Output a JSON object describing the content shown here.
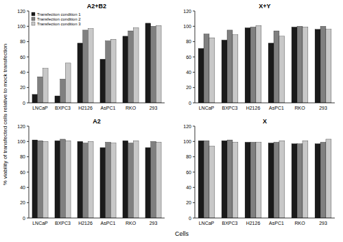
{
  "figure": {
    "y_label": "% viability of transfected cells relative to mock transfection",
    "x_label": "Cells"
  },
  "chart_data": [
    {
      "type": "bar",
      "title": "A2+B2",
      "legend": "upper left",
      "categories": [
        "LNCaP",
        "BXPC3",
        "H2126",
        "AsPC1",
        "RKO",
        "293"
      ],
      "series": [
        {
          "name": "Transfection condition 1",
          "color": "#1a1a1a",
          "values": [
            11,
            9,
            78,
            57,
            87,
            104
          ]
        },
        {
          "name": "Transfection condition 2",
          "color": "#808080",
          "values": [
            34,
            31,
            95,
            81,
            94,
            100
          ]
        },
        {
          "name": "Transfection condition 3",
          "color": "#c8c8c8",
          "values": [
            45,
            52,
            97,
            83,
            98,
            101
          ]
        }
      ],
      "ylim": [
        0,
        120
      ],
      "yticks": [
        0,
        20,
        40,
        60,
        80,
        100,
        120
      ]
    },
    {
      "type": "bar",
      "title": "X+Y",
      "categories": [
        "LNCaP",
        "BXPC3",
        "H2126",
        "AsPC1",
        "RKO",
        "293"
      ],
      "series": [
        {
          "name": "Transfection condition 1",
          "color": "#1a1a1a",
          "values": [
            71,
            82,
            98,
            78,
            99,
            96
          ]
        },
        {
          "name": "Transfection condition 2",
          "color": "#808080",
          "values": [
            90,
            95,
            99,
            94,
            100,
            100
          ]
        },
        {
          "name": "Transfection condition 3",
          "color": "#c8c8c8",
          "values": [
            85,
            89,
            101,
            87,
            99,
            96
          ]
        }
      ],
      "ylim": [
        0,
        120
      ],
      "yticks": [
        0,
        20,
        40,
        60,
        80,
        100,
        120
      ]
    },
    {
      "type": "bar",
      "title": "A2",
      "categories": [
        "LNCaP",
        "BXPC3",
        "H2126",
        "AsPC1",
        "RKO",
        "293"
      ],
      "series": [
        {
          "name": "Transfection condition 1",
          "color": "#1a1a1a",
          "values": [
            102,
            101,
            100,
            92,
            101,
            92
          ]
        },
        {
          "name": "Transfection condition 2",
          "color": "#808080",
          "values": [
            101,
            103,
            98,
            99,
            98,
            100
          ]
        },
        {
          "name": "Transfection condition 3",
          "color": "#c8c8c8",
          "values": [
            100,
            101,
            100,
            98,
            101,
            99
          ]
        }
      ],
      "ylim": [
        0,
        120
      ],
      "yticks": [
        0,
        20,
        40,
        60,
        80,
        100,
        120
      ]
    },
    {
      "type": "bar",
      "title": "X",
      "categories": [
        "LNCaP",
        "BXPC3",
        "H2126",
        "AsPC1",
        "RKO",
        "293"
      ],
      "series": [
        {
          "name": "Transfection condition 1",
          "color": "#1a1a1a",
          "values": [
            101,
            101,
            99,
            98,
            97,
            97
          ]
        },
        {
          "name": "Transfection condition 2",
          "color": "#808080",
          "values": [
            101,
            102,
            99,
            99,
            97,
            99
          ]
        },
        {
          "name": "Transfection condition 3",
          "color": "#c8c8c8",
          "values": [
            94,
            99,
            99,
            101,
            101,
            103
          ]
        }
      ],
      "ylim": [
        0,
        120
      ],
      "yticks": [
        0,
        20,
        40,
        60,
        80,
        100,
        120
      ]
    }
  ]
}
